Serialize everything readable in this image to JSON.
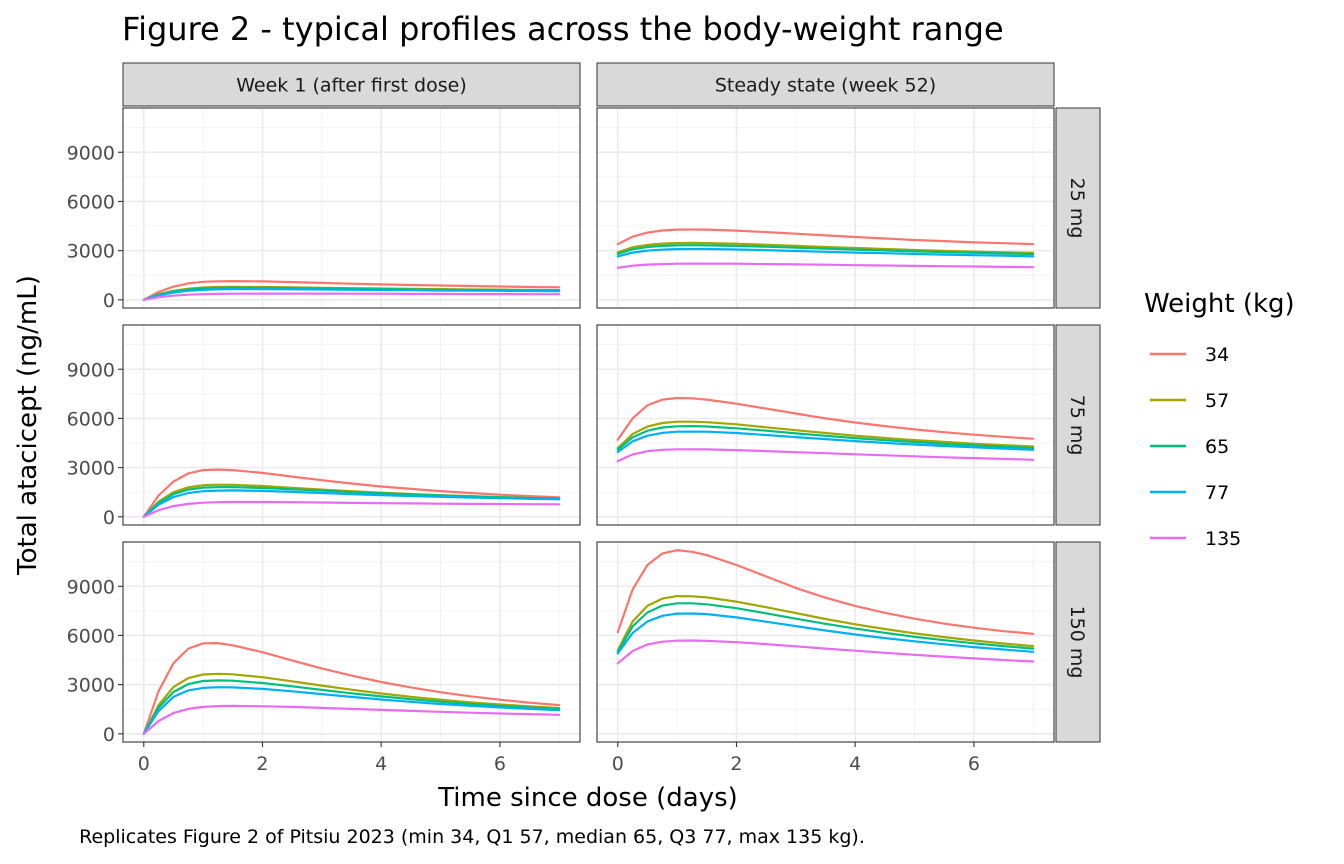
{
  "chart_data": {
    "type": "line",
    "title": "Figure 2 - typical profiles across the body-weight range",
    "caption": "Replicates Figure 2 of Pitsiu 2023 (min 34, Q1 57, median 65, Q3 77, max 135 kg).",
    "xlabel": "Time since dose (days)",
    "ylabel": "Total atacicept (ng/mL)",
    "xlim": [
      -0.35,
      7.35
    ],
    "ylim": [
      -500,
      11700
    ],
    "x_ticks": [
      0,
      2,
      4,
      6
    ],
    "y_ticks": [
      0,
      3000,
      6000,
      9000
    ],
    "grid": true,
    "legend": {
      "title": "Weight (kg)",
      "position": "right",
      "entries": [
        {
          "label": "34",
          "color": "#F8766D"
        },
        {
          "label": "57",
          "color": "#A3A500"
        },
        {
          "label": "65",
          "color": "#00BF7D"
        },
        {
          "label": "77",
          "color": "#00B0F6"
        },
        {
          "label": "135",
          "color": "#E76BF3"
        }
      ]
    },
    "columns": [
      "Week 1 (after first dose)",
      "Steady state (week 52)"
    ],
    "rows": [
      "25 mg",
      "75 mg",
      "150 mg"
    ],
    "x": [
      0,
      0.25,
      0.5,
      0.75,
      1,
      1.25,
      1.5,
      2,
      2.5,
      3,
      3.5,
      4,
      4.5,
      5,
      5.5,
      6,
      6.5,
      7
    ],
    "panels": [
      {
        "column": "Week 1 (after first dose)",
        "row": "25 mg",
        "series": [
          {
            "name": "34",
            "values": [
              0,
              480,
              800,
              1000,
              1100,
              1130,
              1140,
              1120,
              1080,
              1030,
              980,
              940,
              900,
              870,
              840,
              810,
              780,
              760
            ]
          },
          {
            "name": "57",
            "values": [
              0,
              340,
              550,
              680,
              750,
              780,
              790,
              780,
              760,
              730,
              710,
              690,
              670,
              650,
              630,
              620,
              600,
              590
            ]
          },
          {
            "name": "65",
            "values": [
              0,
              310,
              500,
              620,
              690,
              720,
              730,
              720,
              710,
              690,
              670,
              650,
              630,
              610,
              600,
              590,
              570,
              560
            ]
          },
          {
            "name": "77",
            "values": [
              0,
              270,
              440,
              550,
              610,
              640,
              650,
              650,
              640,
              630,
              610,
              600,
              590,
              570,
              560,
              550,
              540,
              530
            ]
          },
          {
            "name": "135",
            "values": [
              0,
              160,
              250,
              310,
              340,
              360,
              370,
              380,
              380,
              380,
              370,
              370,
              360,
              360,
              350,
              350,
              340,
              340
            ]
          }
        ]
      },
      {
        "column": "Steady state (week 52)",
        "row": "25 mg",
        "series": [
          {
            "name": "34",
            "values": [
              3400,
              3850,
              4100,
              4230,
              4280,
              4290,
              4280,
              4220,
              4130,
              4030,
              3930,
              3830,
              3740,
              3650,
              3580,
              3510,
              3450,
              3400
            ]
          },
          {
            "name": "57",
            "values": [
              2900,
              3200,
              3350,
              3430,
              3460,
              3470,
              3460,
              3420,
              3360,
              3290,
              3220,
              3160,
              3100,
              3040,
              2990,
              2940,
              2900,
              2860
            ]
          },
          {
            "name": "65",
            "values": [
              2800,
              3080,
              3220,
              3290,
              3320,
              3330,
              3320,
              3290,
              3240,
              3180,
              3120,
              3060,
              3010,
              2960,
              2910,
              2870,
              2830,
              2790
            ]
          },
          {
            "name": "77",
            "values": [
              2650,
              2880,
              3000,
              3060,
              3090,
              3100,
              3100,
              3070,
              3030,
              2980,
              2930,
              2880,
              2840,
              2800,
              2760,
              2720,
              2690,
              2650
            ]
          },
          {
            "name": "135",
            "values": [
              1950,
              2080,
              2150,
              2180,
              2200,
              2210,
              2210,
              2200,
              2180,
              2160,
              2140,
              2110,
              2090,
              2070,
              2050,
              2030,
              2010,
              1990
            ]
          }
        ]
      },
      {
        "column": "Week 1 (after first dose)",
        "row": "75 mg",
        "series": [
          {
            "name": "34",
            "values": [
              0,
              1300,
              2150,
              2650,
              2850,
              2880,
              2850,
              2680,
              2450,
              2230,
              2030,
              1850,
              1700,
              1570,
              1450,
              1350,
              1260,
              1190
            ]
          },
          {
            "name": "57",
            "values": [
              0,
              920,
              1500,
              1800,
              1930,
              1960,
              1950,
              1880,
              1770,
              1660,
              1560,
              1470,
              1390,
              1320,
              1260,
              1200,
              1150,
              1110
            ]
          },
          {
            "name": "65",
            "values": [
              0,
              850,
              1380,
              1660,
              1780,
              1810,
              1810,
              1760,
              1680,
              1590,
              1500,
              1430,
              1360,
              1300,
              1240,
              1190,
              1150,
              1110
            ]
          },
          {
            "name": "77",
            "values": [
              0,
              740,
              1200,
              1450,
              1560,
              1600,
              1610,
              1580,
              1520,
              1450,
              1380,
              1320,
              1270,
              1220,
              1180,
              1140,
              1100,
              1070
            ]
          },
          {
            "name": "135",
            "values": [
              0,
              400,
              650,
              790,
              860,
              890,
              900,
              900,
              890,
              870,
              850,
              830,
              820,
              800,
              790,
              780,
              770,
              760
            ]
          }
        ]
      },
      {
        "column": "Steady state (week 52)",
        "row": "75 mg",
        "series": [
          {
            "name": "34",
            "values": [
              4700,
              6000,
              6800,
              7150,
              7250,
              7230,
              7150,
              6900,
              6600,
              6300,
              6000,
              5750,
              5530,
              5330,
              5160,
              5010,
              4880,
              4760
            ]
          },
          {
            "name": "57",
            "values": [
              4200,
              5050,
              5500,
              5720,
              5800,
              5800,
              5770,
              5640,
              5460,
              5280,
              5110,
              4950,
              4810,
              4680,
              4570,
              4460,
              4370,
              4290
            ]
          },
          {
            "name": "65",
            "values": [
              4100,
              4850,
              5250,
              5450,
              5520,
              5530,
              5510,
              5400,
              5250,
              5090,
              4940,
              4800,
              4670,
              4560,
              4450,
              4360,
              4270,
              4190
            ]
          },
          {
            "name": "77",
            "values": [
              3950,
              4600,
              4950,
              5120,
              5190,
              5200,
              5190,
              5110,
              4990,
              4860,
              4740,
              4620,
              4510,
              4410,
              4320,
              4240,
              4160,
              4090
            ]
          },
          {
            "name": "135",
            "values": [
              3400,
              3800,
              4000,
              4090,
              4120,
              4120,
              4110,
              4070,
              4010,
              3940,
              3880,
              3810,
              3750,
              3690,
              3630,
              3580,
              3530,
              3480
            ]
          }
        ]
      },
      {
        "column": "Week 1 (after first dose)",
        "row": "150 mg",
        "series": [
          {
            "name": "34",
            "values": [
              0,
              2600,
              4300,
              5200,
              5520,
              5530,
              5400,
              4980,
              4480,
              3990,
              3550,
              3160,
              2830,
              2540,
              2290,
              2080,
              1900,
              1750
            ]
          },
          {
            "name": "57",
            "values": [
              0,
              1750,
              2850,
              3400,
              3620,
              3660,
              3630,
              3450,
              3200,
              2940,
              2690,
              2460,
              2260,
              2080,
              1920,
              1790,
              1670,
              1570
            ]
          },
          {
            "name": "65",
            "values": [
              0,
              1600,
              2550,
              3030,
              3220,
              3260,
              3240,
              3100,
              2900,
              2680,
              2470,
              2280,
              2110,
              1960,
              1820,
              1700,
              1600,
              1510
            ]
          },
          {
            "name": "77",
            "values": [
              0,
              1400,
              2250,
              2650,
              2800,
              2840,
              2830,
              2740,
              2590,
              2420,
              2250,
              2090,
              1950,
              1820,
              1710,
              1610,
              1520,
              1440
            ]
          },
          {
            "name": "135",
            "values": [
              0,
              780,
              1260,
              1520,
              1640,
              1690,
              1700,
              1680,
              1640,
              1580,
              1520,
              1460,
              1400,
              1340,
              1290,
              1240,
              1200,
              1160
            ]
          }
        ]
      },
      {
        "column": "Steady state (week 52)",
        "row": "150 mg",
        "series": [
          {
            "name": "34",
            "values": [
              6200,
              8800,
              10300,
              11000,
              11200,
              11100,
              10900,
              10300,
              9600,
              8900,
              8300,
              7800,
              7380,
              7020,
              6720,
              6470,
              6260,
              6100
            ]
          },
          {
            "name": "57",
            "values": [
              5100,
              6850,
              7800,
              8250,
              8400,
              8390,
              8320,
              8060,
              7720,
              7360,
              7000,
              6680,
              6390,
              6130,
              5900,
              5690,
              5510,
              5350
            ]
          },
          {
            "name": "65",
            "values": [
              5000,
              6550,
              7400,
              7820,
              7960,
              7960,
              7900,
              7660,
              7350,
              7020,
              6710,
              6420,
              6160,
              5920,
              5710,
              5520,
              5350,
              5200
            ]
          },
          {
            "name": "77",
            "values": [
              4900,
              6150,
              6850,
              7200,
              7330,
              7340,
              7300,
              7100,
              6840,
              6570,
              6300,
              6060,
              5840,
              5640,
              5460,
              5290,
              5140,
              5000
            ]
          },
          {
            "name": "135",
            "values": [
              4300,
              5050,
              5450,
              5620,
              5680,
              5690,
              5670,
              5590,
              5470,
              5340,
              5200,
              5070,
              4940,
              4820,
              4710,
              4600,
              4500,
              4410
            ]
          }
        ]
      }
    ]
  }
}
